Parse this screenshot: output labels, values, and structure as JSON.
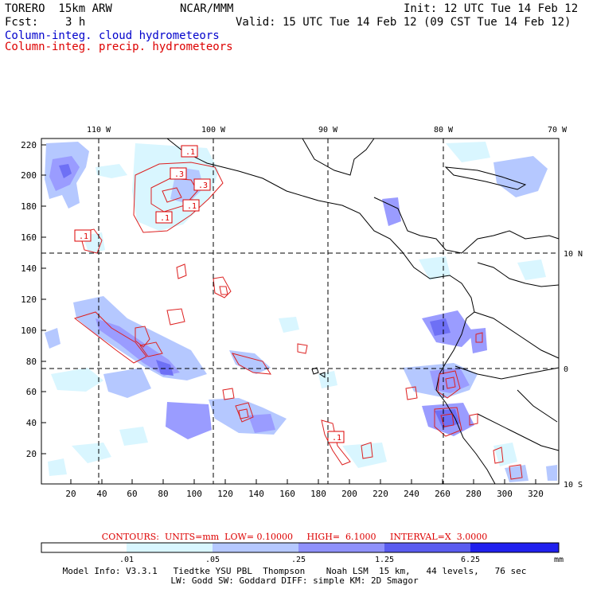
{
  "header": {
    "model": "TORERO  15km ARW",
    "center": "NCAR/MMM",
    "init": "Init: 12 UTC Tue 14 Feb 12",
    "fcst_label": "Fcst:",
    "fcst_value": "3 h",
    "valid": "Valid: 15 UTC Tue 14 Feb 12 (09 CST Tue 14 Feb 12)",
    "field_cloud": "Column-integ. cloud hydrometeors",
    "field_precip": "Column-integ. precip. hydrometeors"
  },
  "colors": {
    "cloud_text": "#0000cc",
    "precip_text": "#dd0000",
    "shade_1": "#d9f6ff",
    "shade_2": "#b5c8ff",
    "shade_3": "#9a9cff",
    "shade_4": "#6e70f5",
    "shade_5": "#4646ee",
    "shade_6": "#1e1ef0",
    "contour": "#dd2020",
    "land": "#ffffff",
    "grid": "#000000"
  },
  "axes": {
    "top_lon_labels": [
      "110 W",
      "100 W",
      "90 W",
      "80 W",
      "70 W"
    ],
    "right_lat_labels": [
      "10 N",
      "0",
      "10 S"
    ],
    "left_grid_labels": [
      "220",
      "200",
      "180",
      "160",
      "140",
      "120",
      "100",
      "80",
      "60",
      "40",
      "20"
    ],
    "bottom_grid_labels": [
      "20",
      "40",
      "60",
      "80",
      "100",
      "120",
      "140",
      "160",
      "180",
      "200",
      "220",
      "240",
      "260",
      "280",
      "300",
      "320"
    ]
  },
  "contour_labels": [
    ".1",
    ".3",
    ".3",
    ".1",
    ".1",
    ".1",
    ".1"
  ],
  "contours_info": "CONTOURS:  UNITS=mm  LOW= 0.10000     HIGH=  6.1000     INTERVAL=X  3.0000",
  "colorbar": {
    "ticks": [
      ".01",
      ".05",
      ".25",
      "1.25",
      "6.25"
    ],
    "units": "mm"
  },
  "footer": {
    "line1": "Model Info: V3.3.1   Tiedtke YSU PBL  Thompson    Noah LSM  15 km,   44 levels,   76 sec",
    "line2": "LW: Godd SW: Goddard DIFF: simple KM: 2D Smagor"
  }
}
